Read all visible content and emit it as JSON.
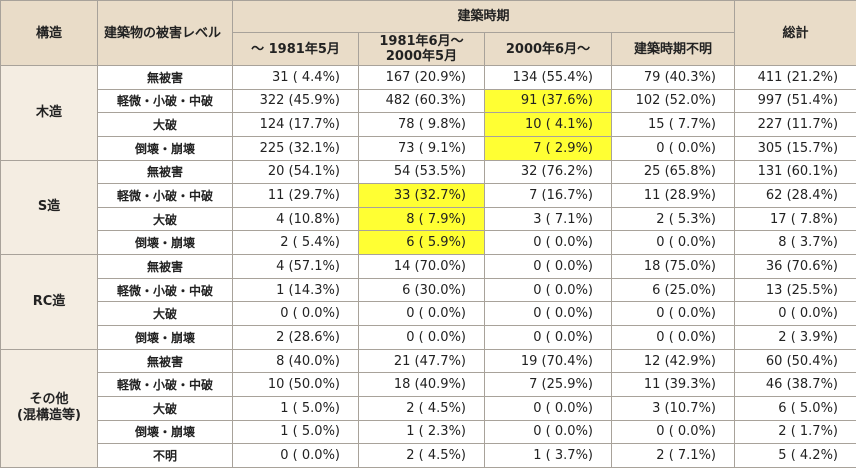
{
  "header": {
    "structure": "構造",
    "level": "建築物の被害レベル",
    "period": "建築時期",
    "periods": [
      "～ 1981年5月",
      "1981年6月～\n2000年5月",
      "2000年6月～",
      "建築時期不明"
    ],
    "total": "総計"
  },
  "highlight_color": "#ffff33",
  "groups": [
    {
      "label": "木造",
      "rows": [
        {
          "level": "無被害",
          "cells": [
            "31 ( 4.4%)",
            "167 (20.9%)",
            "134 (55.4%)",
            "79 (40.3%)",
            "411 (21.2%)"
          ]
        },
        {
          "level": "軽微・小破・中破",
          "cells": [
            "322 (45.9%)",
            "482 (60.3%)",
            "91 (37.6%)",
            "102 (52.0%)",
            "997 (51.4%)"
          ],
          "highlight": [
            2
          ]
        },
        {
          "level": "大破",
          "cells": [
            "124 (17.7%)",
            "78 ( 9.8%)",
            "10 ( 4.1%)",
            "15 ( 7.7%)",
            "227 (11.7%)"
          ],
          "highlight": [
            2
          ]
        },
        {
          "level": "倒壊・崩壊",
          "cells": [
            "225 (32.1%)",
            "73 ( 9.1%)",
            "7 ( 2.9%)",
            "0 ( 0.0%)",
            "305 (15.7%)"
          ],
          "highlight": [
            2
          ]
        }
      ]
    },
    {
      "label": "S造",
      "rows": [
        {
          "level": "無被害",
          "cells": [
            "20 (54.1%)",
            "54 (53.5%)",
            "32 (76.2%)",
            "25 (65.8%)",
            "131 (60.1%)"
          ]
        },
        {
          "level": "軽微・小破・中破",
          "cells": [
            "11 (29.7%)",
            "33 (32.7%)",
            "7 (16.7%)",
            "11 (28.9%)",
            "62 (28.4%)"
          ],
          "highlight": [
            1
          ]
        },
        {
          "level": "大破",
          "cells": [
            "4 (10.8%)",
            "8 ( 7.9%)",
            "3 ( 7.1%)",
            "2 ( 5.3%)",
            "17 ( 7.8%)"
          ],
          "highlight": [
            1
          ]
        },
        {
          "level": "倒壊・崩壊",
          "cells": [
            "2 ( 5.4%)",
            "6 ( 5.9%)",
            "0 ( 0.0%)",
            "0 ( 0.0%)",
            "8 ( 3.7%)"
          ],
          "highlight": [
            1
          ]
        }
      ]
    },
    {
      "label": "RC造",
      "rows": [
        {
          "level": "無被害",
          "cells": [
            "4 (57.1%)",
            "14 (70.0%)",
            "0 ( 0.0%)",
            "18 (75.0%)",
            "36 (70.6%)"
          ]
        },
        {
          "level": "軽微・小破・中破",
          "cells": [
            "1 (14.3%)",
            "6 (30.0%)",
            "0 ( 0.0%)",
            "6 (25.0%)",
            "13 (25.5%)"
          ]
        },
        {
          "level": "大破",
          "cells": [
            "0 ( 0.0%)",
            "0 ( 0.0%)",
            "0 ( 0.0%)",
            "0 ( 0.0%)",
            "0 ( 0.0%)"
          ]
        },
        {
          "level": "倒壊・崩壊",
          "cells": [
            "2 (28.6%)",
            "0 ( 0.0%)",
            "0 ( 0.0%)",
            "0 ( 0.0%)",
            "2 ( 3.9%)"
          ]
        }
      ]
    },
    {
      "label": "その他\n(混構造等)",
      "rows": [
        {
          "level": "無被害",
          "cells": [
            "8 (40.0%)",
            "21 (47.7%)",
            "19 (70.4%)",
            "12 (42.9%)",
            "60 (50.4%)"
          ]
        },
        {
          "level": "軽微・小破・中破",
          "cells": [
            "10 (50.0%)",
            "18 (40.9%)",
            "7 (25.9%)",
            "11 (39.3%)",
            "46 (38.7%)"
          ]
        },
        {
          "level": "大破",
          "cells": [
            "1 ( 5.0%)",
            "2 ( 4.5%)",
            "0 ( 0.0%)",
            "3 (10.7%)",
            "6 ( 5.0%)"
          ]
        },
        {
          "level": "倒壊・崩壊",
          "cells": [
            "1 ( 5.0%)",
            "1 ( 2.3%)",
            "0 ( 0.0%)",
            "0 ( 0.0%)",
            "2 ( 1.7%)"
          ]
        },
        {
          "level": "不明",
          "cells": [
            "0 ( 0.0%)",
            "2 ( 4.5%)",
            "1 ( 3.7%)",
            "2 ( 7.1%)",
            "5 ( 4.2%)"
          ]
        }
      ]
    }
  ]
}
